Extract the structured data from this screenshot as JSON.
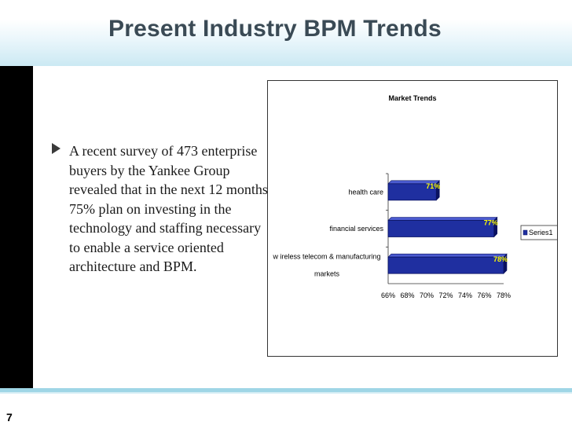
{
  "slide": {
    "title": "Present Industry BPM Trends",
    "page_number": "7",
    "bullet_text": "A recent survey of 473 enterprise buyers by the Yankee Group revealed that in the next 12 months, 75% plan on investing in the technology and staffing necessary to enable a service oriented architecture and BPM."
  },
  "colors": {
    "bar_fill": "#1f2fa0",
    "bar_dark": "#0a1260",
    "data_label": "#ffff00",
    "title_text": "#3a4a55"
  },
  "chart_data": {
    "type": "bar",
    "orientation": "horizontal",
    "title": "Market Trends",
    "categories": [
      "wireless telecom & manufacturing markets",
      "financial services",
      "health care"
    ],
    "category_labels": [
      [
        "w ireless telecom & manufacturing",
        "markets"
      ],
      [
        "financial services"
      ],
      [
        "health care"
      ]
    ],
    "series": [
      {
        "name": "Series1",
        "values": [
          78,
          77,
          71
        ]
      }
    ],
    "data_labels": [
      "78%",
      "77%",
      "71%"
    ],
    "xlim": [
      66,
      78
    ],
    "x_ticks": [
      "66%",
      "68%",
      "70%",
      "72%",
      "74%",
      "76%",
      "78%"
    ],
    "legend": {
      "position": "right",
      "entries": [
        "Series1"
      ]
    },
    "grid": false
  }
}
